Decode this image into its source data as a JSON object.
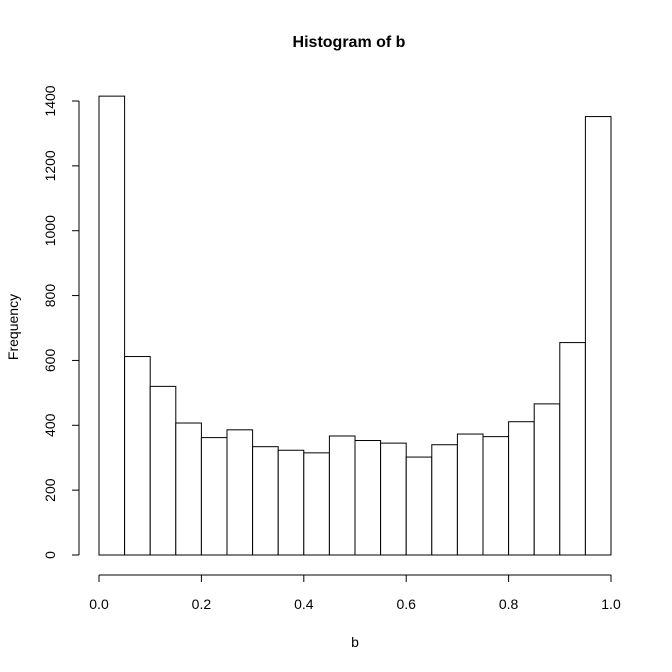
{
  "chart_data": {
    "type": "bar",
    "title": "Histogram of b",
    "xlabel": "b",
    "ylabel": "Frequency",
    "xlim": [
      0,
      1
    ],
    "ylim": [
      0,
      1400
    ],
    "xticks": [
      0.0,
      0.2,
      0.4,
      0.6,
      0.8,
      1.0
    ],
    "xtick_labels": [
      "0.0",
      "0.2",
      "0.4",
      "0.6",
      "0.8",
      "1.0"
    ],
    "yticks": [
      0,
      200,
      400,
      600,
      800,
      1000,
      1200,
      1400
    ],
    "ytick_labels": [
      "0",
      "200",
      "400",
      "600",
      "800",
      "1000",
      "1200",
      "1400"
    ],
    "bin_width": 0.05,
    "bin_starts": [
      0.0,
      0.05,
      0.1,
      0.15,
      0.2,
      0.25,
      0.3,
      0.35,
      0.4,
      0.45,
      0.5,
      0.55,
      0.6,
      0.65,
      0.7,
      0.75,
      0.8,
      0.85,
      0.9,
      0.95
    ],
    "values": [
      1415,
      612,
      520,
      407,
      362,
      386,
      334,
      323,
      315,
      367,
      353,
      345,
      302,
      340,
      373,
      365,
      411,
      466,
      655,
      1352
    ],
    "grid": false,
    "legend": "none"
  }
}
